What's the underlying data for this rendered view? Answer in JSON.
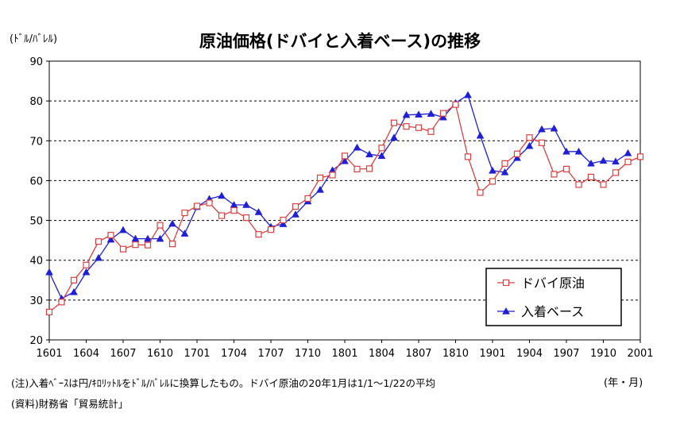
{
  "chart_data": {
    "type": "line",
    "title": "原油価格(ドバイと入着ベース)の推移",
    "ylabel": "(ﾄﾞﾙ/ﾊﾞﾚﾙ)",
    "xlabel": "(年・月)",
    "ylim": [
      20,
      90
    ],
    "yticks": [
      "20",
      "30",
      "40",
      "50",
      "60",
      "70",
      "80",
      "90"
    ],
    "xticks": [
      "1601",
      "1604",
      "1607",
      "1610",
      "1701",
      "1704",
      "1707",
      "1710",
      "1801",
      "1804",
      "1807",
      "1810",
      "1901",
      "1904",
      "1907",
      "1910",
      "2001"
    ],
    "grid": "dashed horizontal",
    "legend_position": "bottom-right",
    "series": [
      {
        "name": "ドバイ原油",
        "color": "#d94040",
        "marker": "square",
        "values": [
          27.0,
          29.5,
          35.0,
          38.8,
          44.7,
          46.3,
          42.8,
          43.9,
          43.8,
          48.8,
          44.1,
          51.9,
          53.6,
          54.4,
          51.2,
          52.5,
          50.7,
          46.5,
          47.7,
          50.1,
          53.5,
          55.5,
          60.7,
          61.4,
          66.2,
          62.9,
          63.0,
          68.2,
          74.5,
          73.6,
          73.3,
          72.3,
          76.9,
          79.1,
          66.0,
          57.0,
          59.8,
          64.3,
          66.7,
          70.8,
          69.5,
          61.6,
          62.9,
          59.0,
          60.9,
          59.0,
          62.0,
          64.7,
          66.0
        ]
      },
      {
        "name": "入着ベース",
        "color": "#1f1fd6",
        "marker": "triangle",
        "values": [
          37.0,
          30.4,
          32.0,
          37.0,
          40.6,
          45.2,
          47.6,
          45.4,
          45.4,
          45.4,
          49.2,
          46.7,
          53.4,
          55.4,
          56.2,
          53.9,
          53.9,
          52.1,
          48.4,
          49.1,
          51.5,
          54.8,
          57.7,
          62.6,
          64.9,
          68.3,
          66.6,
          66.2,
          70.8,
          76.5,
          76.6,
          76.8,
          75.9,
          79.5,
          81.5,
          71.3,
          62.5,
          62.1,
          65.7,
          68.7,
          72.9,
          73.1,
          67.3,
          67.3,
          64.3,
          65.0,
          64.8,
          66.9,
          null
        ]
      }
    ]
  },
  "notes": {
    "note1": "(注)入着ﾍﾞｰｽは円/ｷﾛﾘｯﾄﾙをﾄﾞﾙ/ﾊﾞﾚﾙに換算したもの。ドバイ原油の20年1月は1/1～1/22の平均",
    "note2": "(資料)財務省「貿易統計」"
  }
}
